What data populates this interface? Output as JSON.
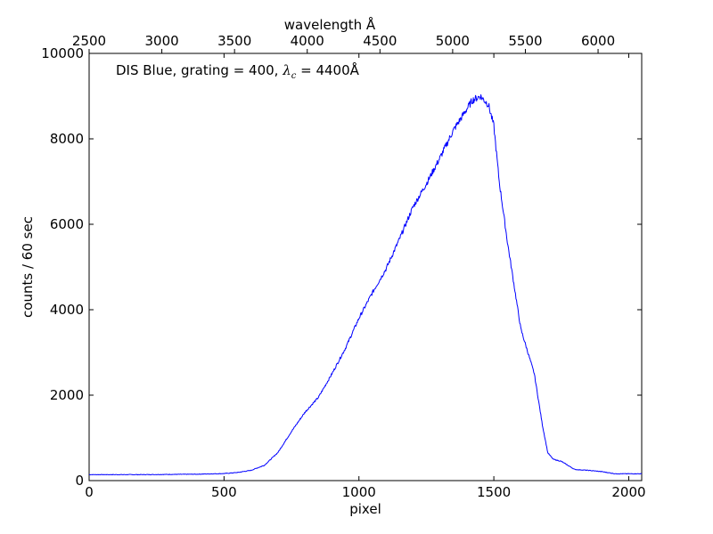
{
  "chart_data": {
    "type": "line",
    "title": "",
    "xlabel": "pixel",
    "ylabel": "counts / 60 sec",
    "x2label": "wavelength Å",
    "xlim": [
      0,
      2048
    ],
    "ylim": [
      0,
      10000
    ],
    "x2lim": [
      2500,
      6300
    ],
    "xticks": [
      "0",
      "500",
      "1000",
      "1500",
      "2000"
    ],
    "x2ticks": [
      "2500",
      "3000",
      "3500",
      "4000",
      "4500",
      "5000",
      "5500",
      "6000"
    ],
    "yticks": [
      "0",
      "2000",
      "4000",
      "6000",
      "8000",
      "10000"
    ],
    "grid": false,
    "legend": "none",
    "line_color": "#0000ff",
    "annotation": {
      "prefix": "DIS Blue, grating = 400, ",
      "math_symbol": "λ",
      "math_subscript": "c",
      "suffix": " = 4400Å"
    },
    "series": [
      {
        "x": [
          0,
          100,
          200,
          300,
          400,
          500,
          550,
          600,
          650,
          700,
          750,
          800,
          850,
          900,
          950,
          1000,
          1050,
          1100,
          1150,
          1200,
          1250,
          1300,
          1350,
          1400,
          1420,
          1450,
          1480,
          1500,
          1520,
          1550,
          1600,
          1650,
          1680,
          1700,
          1720,
          1750,
          1800,
          1850,
          1900,
          1950,
          2000,
          2048
        ],
        "y": [
          140,
          140,
          140,
          145,
          150,
          165,
          190,
          240,
          360,
          660,
          1150,
          1600,
          1950,
          2500,
          3100,
          3800,
          4400,
          4950,
          5650,
          6400,
          6950,
          7550,
          8200,
          8700,
          8900,
          9000,
          8800,
          8300,
          7000,
          5600,
          3550,
          2500,
          1300,
          650,
          500,
          450,
          260,
          240,
          210,
          160,
          160,
          160
        ]
      }
    ]
  }
}
